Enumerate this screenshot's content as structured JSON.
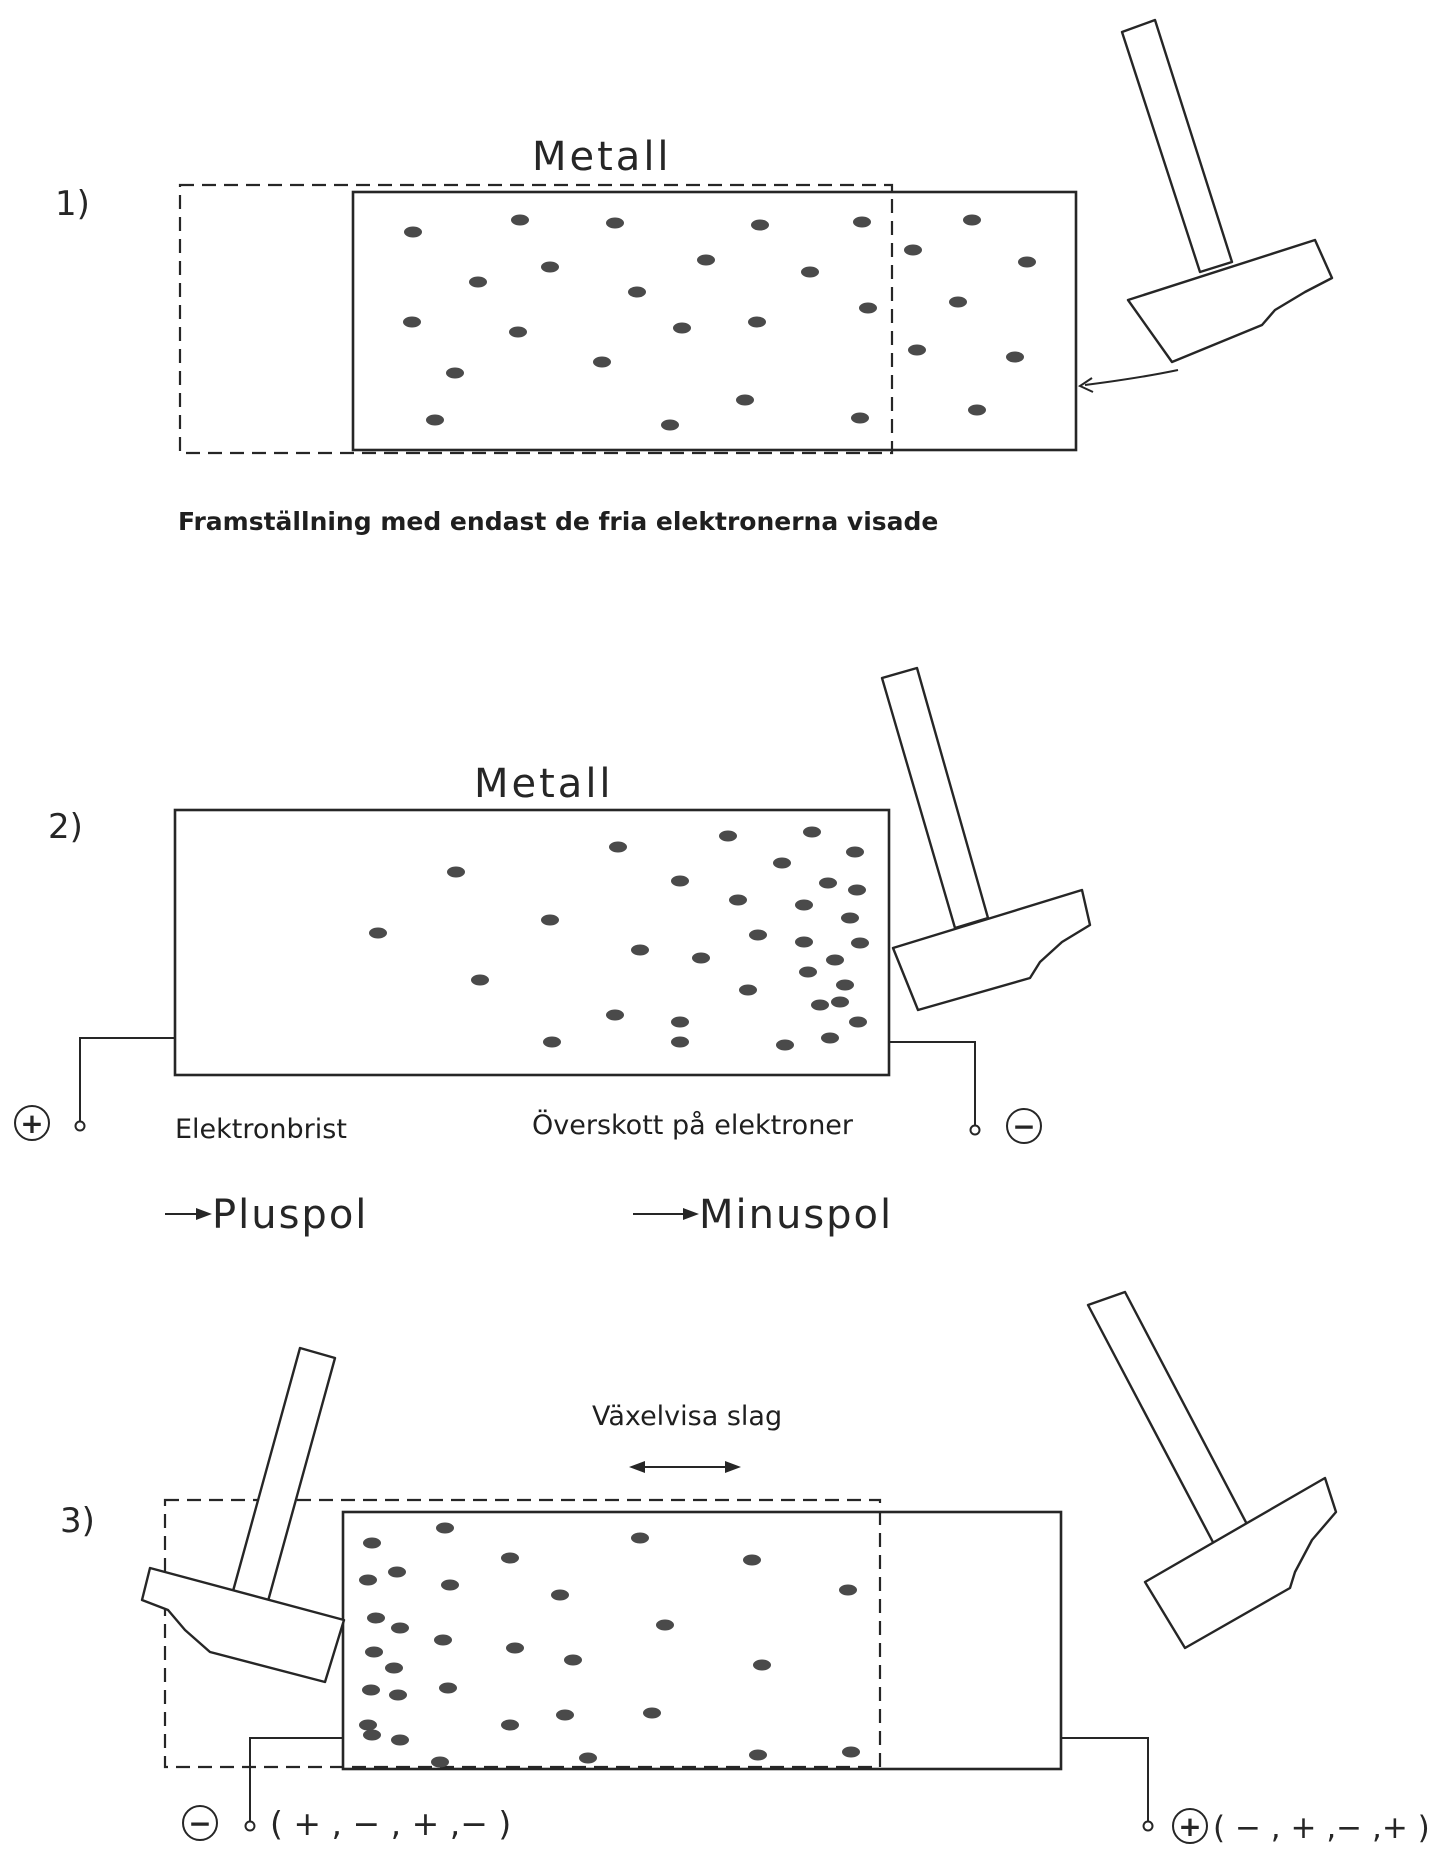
{
  "panel1": {
    "number": "1)",
    "title": "Metall",
    "caption": "Framställning med endast de fria elektronerna visade"
  },
  "panel2": {
    "number": "2)",
    "title": "Metall",
    "left_label": "Elektronbrist",
    "right_label": "Överskott på elektroner",
    "plus_pole": "Pluspol",
    "minus_pole": "Minuspol",
    "plus_symbol": "+",
    "minus_symbol": "−"
  },
  "panel3": {
    "number": "3)",
    "title": "Växelvisa slag",
    "left_sequence": "( + , − , + ,− )",
    "right_sequence": "( − , + ,− ,+ )",
    "minus_symbol": "−",
    "plus_symbol": "+"
  },
  "colors": {
    "ink": "#262626",
    "electron": "#4a4a4a",
    "paper": "#ffffff"
  }
}
